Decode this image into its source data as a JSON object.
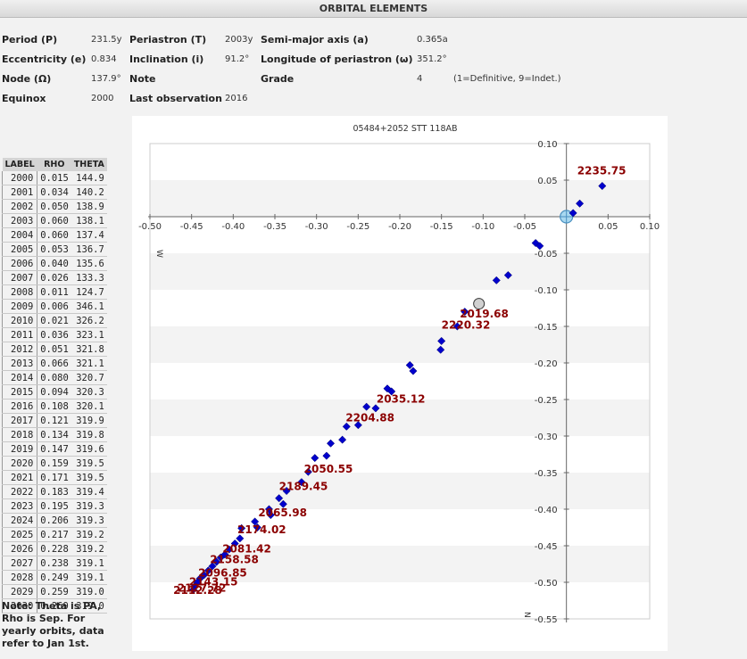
{
  "header": {
    "title": "ORBITAL ELEMENTS"
  },
  "elements": {
    "period": {
      "label": "Period (P)",
      "value": "231.5y"
    },
    "periastron": {
      "label": "Periastron (T)",
      "value": "2003y"
    },
    "semimajor": {
      "label": "Semi-major axis (a)",
      "value": "0.365a"
    },
    "eccentricity": {
      "label": "Eccentricity (e)",
      "value": "0.834"
    },
    "inclination": {
      "label": "Inclination (i)",
      "value": "91.2°"
    },
    "longitude": {
      "label": "Longitude of periastron (ω)",
      "value": "351.2°"
    },
    "node": {
      "label": "Node (Ω)",
      "value": "137.9°"
    },
    "note": {
      "label": "Note",
      "value": ""
    },
    "grade": {
      "label": "Grade",
      "value": "4",
      "hint": "(1=Definitive, 9=Indet.)"
    },
    "equinox": {
      "label": "Equinox",
      "value": "2000"
    },
    "last_obs": {
      "label": "Last observation",
      "value": "2016"
    }
  },
  "table": {
    "headers": [
      "LABEL",
      "RHO",
      "THETA"
    ],
    "rows": [
      [
        "2000",
        "0.015",
        "144.9"
      ],
      [
        "2001",
        "0.034",
        "140.2"
      ],
      [
        "2002",
        "0.050",
        "138.9"
      ],
      [
        "2003",
        "0.060",
        "138.1"
      ],
      [
        "2004",
        "0.060",
        "137.4"
      ],
      [
        "2005",
        "0.053",
        "136.7"
      ],
      [
        "2006",
        "0.040",
        "135.6"
      ],
      [
        "2007",
        "0.026",
        "133.3"
      ],
      [
        "2008",
        "0.011",
        "124.7"
      ],
      [
        "2009",
        "0.006",
        "346.1"
      ],
      [
        "2010",
        "0.021",
        "326.2"
      ],
      [
        "2011",
        "0.036",
        "323.1"
      ],
      [
        "2012",
        "0.051",
        "321.8"
      ],
      [
        "2013",
        "0.066",
        "321.1"
      ],
      [
        "2014",
        "0.080",
        "320.7"
      ],
      [
        "2015",
        "0.094",
        "320.3"
      ],
      [
        "2016",
        "0.108",
        "320.1"
      ],
      [
        "2017",
        "0.121",
        "319.9"
      ],
      [
        "2018",
        "0.134",
        "319.8"
      ],
      [
        "2019",
        "0.147",
        "319.6"
      ],
      [
        "2020",
        "0.159",
        "319.5"
      ],
      [
        "2021",
        "0.171",
        "319.5"
      ],
      [
        "2022",
        "0.183",
        "319.4"
      ],
      [
        "2023",
        "0.195",
        "319.3"
      ],
      [
        "2024",
        "0.206",
        "319.3"
      ],
      [
        "2025",
        "0.217",
        "319.2"
      ],
      [
        "2026",
        "0.228",
        "319.2"
      ],
      [
        "2027",
        "0.238",
        "319.1"
      ],
      [
        "2028",
        "0.249",
        "319.1"
      ],
      [
        "2029",
        "0.259",
        "319.0"
      ],
      [
        "2030",
        "0.269",
        "319.0"
      ]
    ]
  },
  "note_text": "Note: Theta is PA, Rho is Sep. For yearly orbits, data refer to Jan 1st.",
  "chart_data": {
    "type": "scatter",
    "title": "05484+2052 STT 118AB",
    "xlim": [
      -0.5,
      0.1
    ],
    "ylim": [
      -0.55,
      0.1
    ],
    "x_ticks": [
      -0.5,
      -0.45,
      -0.4,
      -0.35,
      -0.3,
      -0.25,
      -0.2,
      -0.15,
      -0.1,
      -0.05,
      0.05,
      0.1
    ],
    "x_tick_labels": [
      "-0.50",
      "-0.45",
      "-0.40",
      "-0.35",
      "-0.30",
      "-0.25",
      "-0.20",
      "-0.15",
      "-0.10",
      "-0.05",
      "0.05",
      "0.10"
    ],
    "y_ticks": [
      0.1,
      0.05,
      -0.05,
      -0.1,
      -0.15,
      -0.2,
      -0.25,
      -0.3,
      -0.35,
      -0.4,
      -0.45,
      -0.5,
      -0.55
    ],
    "y_tick_labels": [
      "0.10",
      "0.05",
      "-0.05",
      "-0.10",
      "-0.15",
      "-0.20",
      "-0.25",
      "-0.30",
      "-0.35",
      "-0.40",
      "-0.45",
      "-0.50",
      "-0.55"
    ],
    "axis_labels": {
      "west": "W",
      "north": "N"
    },
    "point_color": "#0000cc",
    "label_color": "#8b0000",
    "points": [
      [
        0.043,
        0.042
      ],
      [
        0.016,
        0.018
      ],
      [
        0.008,
        0.005
      ],
      [
        -0.037,
        -0.036
      ],
      [
        -0.032,
        -0.04
      ],
      [
        -0.07,
        -0.08
      ],
      [
        -0.084,
        -0.087
      ],
      [
        -0.122,
        -0.13
      ],
      [
        -0.131,
        -0.15
      ],
      [
        -0.15,
        -0.17
      ],
      [
        -0.151,
        -0.182
      ],
      [
        -0.188,
        -0.203
      ],
      [
        -0.184,
        -0.211
      ],
      [
        -0.215,
        -0.235
      ],
      [
        -0.21,
        -0.239
      ],
      [
        -0.24,
        -0.26
      ],
      [
        -0.229,
        -0.262
      ],
      [
        -0.25,
        -0.285
      ],
      [
        -0.264,
        -0.287
      ],
      [
        -0.269,
        -0.305
      ],
      [
        -0.283,
        -0.31
      ],
      [
        -0.288,
        -0.327
      ],
      [
        -0.302,
        -0.33
      ],
      [
        -0.31,
        -0.349
      ],
      [
        -0.318,
        -0.363
      ],
      [
        -0.336,
        -0.375
      ],
      [
        -0.345,
        -0.385
      ],
      [
        -0.34,
        -0.393
      ],
      [
        -0.357,
        -0.4
      ],
      [
        -0.355,
        -0.408
      ],
      [
        -0.374,
        -0.417
      ],
      [
        -0.371,
        -0.425
      ],
      [
        -0.39,
        -0.426
      ],
      [
        -0.392,
        -0.44
      ],
      [
        -0.398,
        -0.447
      ],
      [
        -0.405,
        -0.455
      ],
      [
        -0.41,
        -0.462
      ],
      [
        -0.415,
        -0.466
      ],
      [
        -0.42,
        -0.472
      ],
      [
        -0.425,
        -0.478
      ],
      [
        -0.43,
        -0.484
      ],
      [
        -0.435,
        -0.49
      ],
      [
        -0.44,
        -0.495
      ],
      [
        -0.443,
        -0.5
      ],
      [
        -0.446,
        -0.505
      ],
      [
        -0.448,
        -0.51
      ]
    ],
    "primary": [
      0.0,
      0.0
    ],
    "current_position": [
      -0.105,
      -0.119
    ],
    "annotations": [
      {
        "text": "2235.75",
        "x": 0.013,
        "y": 0.058
      },
      {
        "text": "2019.68",
        "x": -0.128,
        "y": -0.138
      },
      {
        "text": "2220.32",
        "x": -0.15,
        "y": -0.153
      },
      {
        "text": "2035.12",
        "x": -0.228,
        "y": -0.254
      },
      {
        "text": "2204.88",
        "x": -0.265,
        "y": -0.28
      },
      {
        "text": "2050.55",
        "x": -0.315,
        "y": -0.35
      },
      {
        "text": "2189.45",
        "x": -0.345,
        "y": -0.374
      },
      {
        "text": "2065.98",
        "x": -0.37,
        "y": -0.41
      },
      {
        "text": "2174.02",
        "x": -0.395,
        "y": -0.433
      },
      {
        "text": "2081.42",
        "x": -0.413,
        "y": -0.459
      },
      {
        "text": "2158.58",
        "x": -0.428,
        "y": -0.474
      },
      {
        "text": "2096.85",
        "x": -0.442,
        "y": -0.492
      },
      {
        "text": "2143.15",
        "x": -0.453,
        "y": -0.504
      },
      {
        "text": "2127.72",
        "x": -0.467,
        "y": -0.513
      },
      {
        "text": "2112.28",
        "x": -0.472,
        "y": -0.516
      }
    ]
  }
}
